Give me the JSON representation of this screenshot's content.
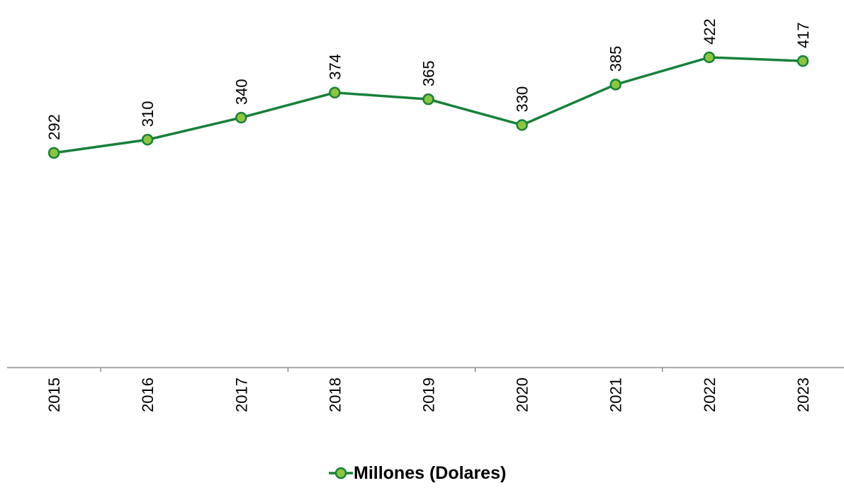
{
  "chart_data": {
    "type": "line",
    "categories": [
      "2015",
      "2016",
      "2017",
      "2018",
      "2019",
      "2020",
      "2021",
      "2022",
      "2023"
    ],
    "series": [
      {
        "name": "Millones (Dolares)",
        "color": "#17813a",
        "marker_color": "#8cc63f",
        "values": [
          292,
          310,
          340,
          374,
          365,
          330,
          385,
          422,
          417
        ]
      }
    ],
    "ylim": [
      0,
      500
    ]
  }
}
